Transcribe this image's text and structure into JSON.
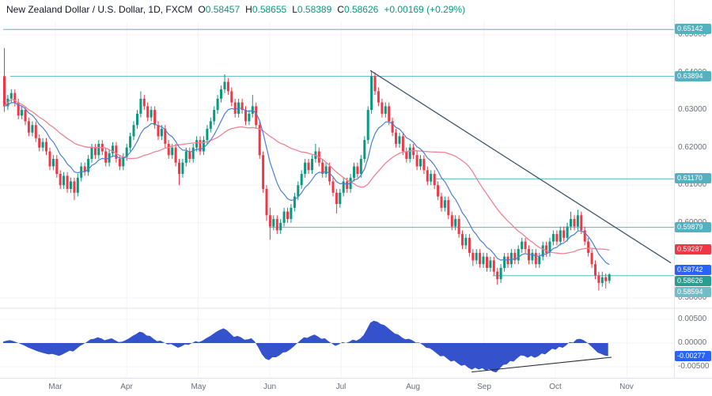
{
  "header": {
    "title": "New Zealand Dollar / U.S. Dollar, 1D, FXCM",
    "o_label": "O",
    "open": "0.58457",
    "h_label": "H",
    "high": "0.58655",
    "l_label": "L",
    "low": "0.58389",
    "c_label": "C",
    "close": "0.58626",
    "change": "+0.00169 (+0.29%)"
  },
  "chart": {
    "y_axis_labels": [
      {
        "text": "0.65000",
        "price": 0.65
      },
      {
        "text": "0.64000",
        "price": 0.64
      },
      {
        "text": "0.63000",
        "price": 0.63
      },
      {
        "text": "0.62000",
        "price": 0.62
      },
      {
        "text": "0.61000",
        "price": 0.61
      },
      {
        "text": "0.60000",
        "price": 0.6
      },
      {
        "text": "0.58000",
        "price": 0.58
      }
    ],
    "price_badges": [
      {
        "text": "0.65142",
        "price": 0.65142,
        "color_key": "badge_teal"
      },
      {
        "text": "0.63894",
        "price": 0.63894,
        "color_key": "badge_teal"
      },
      {
        "text": "0.61170",
        "price": 0.6117,
        "color_key": "badge_teal"
      },
      {
        "text": "0.59879",
        "price": 0.59879,
        "color_key": "badge_teal"
      },
      {
        "text": "0.59287",
        "price": 0.59287,
        "color_key": "badge_red"
      },
      {
        "text": "0.58742",
        "price": 0.58742,
        "color_key": "badge_blue"
      },
      {
        "text": "0.58626",
        "price": 0.58626,
        "color_key": "badge_green"
      },
      {
        "text": "0.58594",
        "price": 0.58594,
        "color_key": "badge_light"
      }
    ],
    "osc_axis_labels": [
      {
        "text": "0.00500",
        "v": 0.005
      },
      {
        "text": "0.00000",
        "v": 0.0
      },
      {
        "text": "-0.00500",
        "v": -0.005
      }
    ],
    "osc_badge": {
      "text": "-0.00277",
      "v": -0.00277
    }
  },
  "chart_data": {
    "type": "candlestick",
    "title": "New Zealand Dollar / U.S. Dollar, 1D, FXCM",
    "symbol": "NZD/USD",
    "interval": "1D",
    "exchange": "FXCM",
    "ohlc_last": {
      "open": 0.58457,
      "high": 0.58655,
      "low": 0.58389,
      "close": 0.58626,
      "change": 0.00169,
      "change_pct": 0.29
    },
    "ylim": [
      0.58,
      0.655
    ],
    "x_months": [
      "Mar",
      "Apr",
      "May",
      "Jun",
      "Jul",
      "Aug",
      "Sep",
      "Oct",
      "Nov"
    ],
    "candles": [
      [
        0.639,
        0.6465,
        0.6295,
        0.631
      ],
      [
        0.631,
        0.634,
        0.63,
        0.633
      ],
      [
        0.633,
        0.6355,
        0.632,
        0.6345
      ],
      [
        0.6345,
        0.6355,
        0.631,
        0.632
      ],
      [
        0.632,
        0.633,
        0.6275,
        0.6285
      ],
      [
        0.6285,
        0.631,
        0.6275,
        0.63
      ],
      [
        0.63,
        0.631,
        0.626,
        0.627
      ],
      [
        0.627,
        0.628,
        0.623,
        0.624
      ],
      [
        0.624,
        0.627,
        0.623,
        0.626
      ],
      [
        0.626,
        0.627,
        0.6215,
        0.6225
      ],
      [
        0.6225,
        0.6235,
        0.619,
        0.62
      ],
      [
        0.62,
        0.6225,
        0.619,
        0.6215
      ],
      [
        0.6215,
        0.6225,
        0.618,
        0.619
      ],
      [
        0.619,
        0.62,
        0.614,
        0.615
      ],
      [
        0.615,
        0.618,
        0.614,
        0.617
      ],
      [
        0.617,
        0.618,
        0.612,
        0.613
      ],
      [
        0.613,
        0.614,
        0.609,
        0.61
      ],
      [
        0.61,
        0.6135,
        0.609,
        0.6125
      ],
      [
        0.6125,
        0.6135,
        0.608,
        0.609
      ],
      [
        0.609,
        0.612,
        0.608,
        0.611
      ],
      [
        0.611,
        0.612,
        0.606,
        0.608
      ],
      [
        0.608,
        0.613,
        0.607,
        0.612
      ],
      [
        0.612,
        0.616,
        0.611,
        0.615
      ],
      [
        0.615,
        0.616,
        0.6125,
        0.6135
      ],
      [
        0.6135,
        0.618,
        0.6125,
        0.617
      ],
      [
        0.617,
        0.621,
        0.616,
        0.62
      ],
      [
        0.62,
        0.621,
        0.617,
        0.618
      ],
      [
        0.618,
        0.622,
        0.617,
        0.621
      ],
      [
        0.621,
        0.622,
        0.618,
        0.619
      ],
      [
        0.619,
        0.62,
        0.615,
        0.616
      ],
      [
        0.616,
        0.6195,
        0.615,
        0.6185
      ],
      [
        0.6185,
        0.6215,
        0.6175,
        0.6205
      ],
      [
        0.6205,
        0.6215,
        0.616,
        0.617
      ],
      [
        0.617,
        0.618,
        0.614,
        0.615
      ],
      [
        0.615,
        0.6185,
        0.614,
        0.6175
      ],
      [
        0.6175,
        0.621,
        0.6165,
        0.62
      ],
      [
        0.62,
        0.624,
        0.619,
        0.623
      ],
      [
        0.623,
        0.627,
        0.622,
        0.626
      ],
      [
        0.626,
        0.63,
        0.625,
        0.629
      ],
      [
        0.629,
        0.635,
        0.628,
        0.633
      ],
      [
        0.633,
        0.634,
        0.63,
        0.631
      ],
      [
        0.631,
        0.632,
        0.627,
        0.628
      ],
      [
        0.628,
        0.631,
        0.627,
        0.63
      ],
      [
        0.63,
        0.631,
        0.625,
        0.626
      ],
      [
        0.626,
        0.627,
        0.622,
        0.623
      ],
      [
        0.623,
        0.626,
        0.622,
        0.625
      ],
      [
        0.625,
        0.626,
        0.62,
        0.621
      ],
      [
        0.621,
        0.622,
        0.617,
        0.618
      ],
      [
        0.618,
        0.621,
        0.617,
        0.62
      ],
      [
        0.62,
        0.621,
        0.615,
        0.616
      ],
      [
        0.616,
        0.617,
        0.61,
        0.613
      ],
      [
        0.613,
        0.617,
        0.612,
        0.616
      ],
      [
        0.616,
        0.62,
        0.615,
        0.619
      ],
      [
        0.619,
        0.62,
        0.616,
        0.617
      ],
      [
        0.617,
        0.621,
        0.616,
        0.62
      ],
      [
        0.62,
        0.623,
        0.619,
        0.622
      ],
      [
        0.622,
        0.623,
        0.618,
        0.619
      ],
      [
        0.619,
        0.623,
        0.618,
        0.622
      ],
      [
        0.622,
        0.626,
        0.621,
        0.625
      ],
      [
        0.625,
        0.628,
        0.624,
        0.627
      ],
      [
        0.627,
        0.631,
        0.626,
        0.63
      ],
      [
        0.63,
        0.634,
        0.629,
        0.633
      ],
      [
        0.633,
        0.6365,
        0.632,
        0.6355
      ],
      [
        0.6355,
        0.6395,
        0.6345,
        0.6375
      ],
      [
        0.6375,
        0.6385,
        0.634,
        0.635
      ],
      [
        0.635,
        0.636,
        0.631,
        0.632
      ],
      [
        0.632,
        0.633,
        0.628,
        0.629
      ],
      [
        0.629,
        0.633,
        0.628,
        0.632
      ],
      [
        0.632,
        0.633,
        0.629,
        0.63
      ],
      [
        0.63,
        0.631,
        0.626,
        0.627
      ],
      [
        0.627,
        0.63,
        0.626,
        0.629
      ],
      [
        0.629,
        0.634,
        0.628,
        0.631
      ],
      [
        0.631,
        0.632,
        0.625,
        0.626
      ],
      [
        0.626,
        0.627,
        0.617,
        0.618
      ],
      [
        0.618,
        0.619,
        0.608,
        0.609
      ],
      [
        0.609,
        0.61,
        0.6005,
        0.602
      ],
      [
        0.602,
        0.604,
        0.5955,
        0.599
      ],
      [
        0.599,
        0.602,
        0.598,
        0.601
      ],
      [
        0.601,
        0.602,
        0.597,
        0.598
      ],
      [
        0.598,
        0.601,
        0.597,
        0.6
      ],
      [
        0.6,
        0.604,
        0.599,
        0.603
      ],
      [
        0.603,
        0.604,
        0.6,
        0.601
      ],
      [
        0.601,
        0.605,
        0.6,
        0.604
      ],
      [
        0.604,
        0.608,
        0.603,
        0.607
      ],
      [
        0.607,
        0.611,
        0.606,
        0.61
      ],
      [
        0.61,
        0.614,
        0.609,
        0.613
      ],
      [
        0.613,
        0.617,
        0.612,
        0.616
      ],
      [
        0.616,
        0.617,
        0.613,
        0.614
      ],
      [
        0.614,
        0.618,
        0.613,
        0.617
      ],
      [
        0.617,
        0.621,
        0.616,
        0.619
      ],
      [
        0.619,
        0.62,
        0.615,
        0.616
      ],
      [
        0.616,
        0.617,
        0.612,
        0.613
      ],
      [
        0.613,
        0.616,
        0.612,
        0.615
      ],
      [
        0.615,
        0.616,
        0.61,
        0.611
      ],
      [
        0.611,
        0.612,
        0.607,
        0.608
      ],
      [
        0.608,
        0.609,
        0.6025,
        0.605
      ],
      [
        0.605,
        0.609,
        0.604,
        0.608
      ],
      [
        0.608,
        0.612,
        0.607,
        0.611
      ],
      [
        0.611,
        0.612,
        0.608,
        0.609
      ],
      [
        0.609,
        0.613,
        0.608,
        0.612
      ],
      [
        0.612,
        0.616,
        0.611,
        0.615
      ],
      [
        0.615,
        0.616,
        0.612,
        0.613
      ],
      [
        0.613,
        0.618,
        0.612,
        0.617
      ],
      [
        0.617,
        0.623,
        0.616,
        0.622
      ],
      [
        0.622,
        0.631,
        0.621,
        0.63
      ],
      [
        0.63,
        0.6405,
        0.629,
        0.639
      ],
      [
        0.639,
        0.64,
        0.634,
        0.635
      ],
      [
        0.635,
        0.636,
        0.631,
        0.632
      ],
      [
        0.632,
        0.633,
        0.628,
        0.629
      ],
      [
        0.629,
        0.632,
        0.628,
        0.631
      ],
      [
        0.631,
        0.632,
        0.626,
        0.627
      ],
      [
        0.627,
        0.628,
        0.623,
        0.624
      ],
      [
        0.624,
        0.625,
        0.62,
        0.621
      ],
      [
        0.621,
        0.624,
        0.62,
        0.623
      ],
      [
        0.623,
        0.624,
        0.618,
        0.619
      ],
      [
        0.619,
        0.62,
        0.616,
        0.617
      ],
      [
        0.617,
        0.621,
        0.616,
        0.62
      ],
      [
        0.62,
        0.621,
        0.617,
        0.618
      ],
      [
        0.618,
        0.619,
        0.614,
        0.615
      ],
      [
        0.615,
        0.618,
        0.614,
        0.617
      ],
      [
        0.617,
        0.618,
        0.613,
        0.614
      ],
      [
        0.614,
        0.615,
        0.61,
        0.611
      ],
      [
        0.611,
        0.614,
        0.61,
        0.613
      ],
      [
        0.613,
        0.614,
        0.609,
        0.61
      ],
      [
        0.61,
        0.611,
        0.606,
        0.607
      ],
      [
        0.607,
        0.608,
        0.603,
        0.604
      ],
      [
        0.604,
        0.607,
        0.603,
        0.606
      ],
      [
        0.606,
        0.607,
        0.601,
        0.602
      ],
      [
        0.602,
        0.603,
        0.598,
        0.599
      ],
      [
        0.599,
        0.602,
        0.598,
        0.601
      ],
      [
        0.601,
        0.602,
        0.596,
        0.597
      ],
      [
        0.597,
        0.598,
        0.593,
        0.594
      ],
      [
        0.594,
        0.597,
        0.593,
        0.596
      ],
      [
        0.596,
        0.597,
        0.591,
        0.592
      ],
      [
        0.592,
        0.593,
        0.5885,
        0.59
      ],
      [
        0.59,
        0.593,
        0.589,
        0.592
      ],
      [
        0.592,
        0.593,
        0.588,
        0.589
      ],
      [
        0.589,
        0.592,
        0.588,
        0.591
      ],
      [
        0.591,
        0.592,
        0.587,
        0.588
      ],
      [
        0.588,
        0.591,
        0.587,
        0.59
      ],
      [
        0.59,
        0.591,
        0.586,
        0.587
      ],
      [
        0.587,
        0.588,
        0.5835,
        0.585
      ],
      [
        0.585,
        0.589,
        0.584,
        0.588
      ],
      [
        0.588,
        0.592,
        0.587,
        0.591
      ],
      [
        0.591,
        0.592,
        0.588,
        0.589
      ],
      [
        0.589,
        0.593,
        0.588,
        0.592
      ],
      [
        0.592,
        0.593,
        0.589,
        0.59
      ],
      [
        0.59,
        0.594,
        0.589,
        0.593
      ],
      [
        0.593,
        0.596,
        0.592,
        0.595
      ],
      [
        0.595,
        0.596,
        0.592,
        0.593
      ],
      [
        0.593,
        0.594,
        0.589,
        0.59
      ],
      [
        0.59,
        0.593,
        0.589,
        0.592
      ],
      [
        0.592,
        0.593,
        0.588,
        0.589
      ],
      [
        0.589,
        0.592,
        0.588,
        0.591
      ],
      [
        0.591,
        0.595,
        0.59,
        0.594
      ],
      [
        0.594,
        0.595,
        0.591,
        0.592
      ],
      [
        0.592,
        0.596,
        0.591,
        0.595
      ],
      [
        0.595,
        0.598,
        0.594,
        0.597
      ],
      [
        0.597,
        0.598,
        0.594,
        0.595
      ],
      [
        0.595,
        0.599,
        0.594,
        0.598
      ],
      [
        0.598,
        0.599,
        0.595,
        0.596
      ],
      [
        0.596,
        0.6,
        0.595,
        0.599
      ],
      [
        0.599,
        0.603,
        0.598,
        0.601
      ],
      [
        0.601,
        0.602,
        0.598,
        0.599
      ],
      [
        0.599,
        0.6035,
        0.598,
        0.602
      ],
      [
        0.602,
        0.603,
        0.597,
        0.598
      ],
      [
        0.598,
        0.599,
        0.594,
        0.595
      ],
      [
        0.595,
        0.596,
        0.591,
        0.592
      ],
      [
        0.592,
        0.593,
        0.588,
        0.589
      ],
      [
        0.589,
        0.59,
        0.585,
        0.586
      ],
      [
        0.586,
        0.587,
        0.582,
        0.584
      ],
      [
        0.584,
        0.587,
        0.583,
        0.5855
      ],
      [
        0.5855,
        0.5865,
        0.5825,
        0.5845
      ],
      [
        0.58457,
        0.58655,
        0.58389,
        0.58626
      ]
    ],
    "price_lines": [
      {
        "price": 0.65142,
        "from": 0
      },
      {
        "price": 0.63894,
        "from": 2
      },
      {
        "price": 0.6117,
        "from": 123
      },
      {
        "price": 0.59879,
        "from": 76
      },
      {
        "price": 0.58594,
        "from": 140
      }
    ],
    "trendlines": [
      {
        "panel": "price",
        "i1": 105,
        "p1": 0.6405,
        "i2": 191,
        "p2": 0.5893
      },
      {
        "panel": "osc",
        "i1": 134,
        "v1": -0.0061,
        "i2": 174,
        "v2": -0.003
      }
    ],
    "oscillator": {
      "scale": 0.001,
      "zero_line": 0,
      "ylim": [
        -0.0065,
        0.005
      ],
      "last": -0.00277,
      "values": [
        0.3,
        0.5,
        0.6,
        0.4,
        0.1,
        -0.2,
        -0.5,
        -0.9,
        -1.2,
        -1.5,
        -1.8,
        -2.0,
        -2.2,
        -2.4,
        -2.3,
        -2.5,
        -2.7,
        -2.4,
        -2.0,
        -1.6,
        -1.8,
        -1.2,
        -0.6,
        -0.2,
        0.3,
        0.8,
        0.9,
        1.2,
        1.0,
        0.6,
        0.8,
        1.0,
        0.6,
        0.2,
        0.3,
        0.6,
        1.0,
        1.5,
        1.9,
        2.4,
        2.2,
        1.6,
        1.5,
        0.9,
        0.4,
        0.5,
        0.1,
        -0.3,
        -0.2,
        -0.6,
        -1.0,
        -0.7,
        -0.3,
        -0.4,
        0.0,
        0.4,
        0.2,
        0.5,
        1.0,
        1.4,
        1.9,
        2.4,
        2.8,
        3.1,
        2.7,
        2.0,
        1.3,
        1.5,
        1.2,
        0.7,
        0.8,
        1.0,
        0.3,
        -1.0,
        -2.4,
        -3.3,
        -3.6,
        -3.0,
        -3.0,
        -2.6,
        -2.0,
        -1.9,
        -1.4,
        -0.8,
        -0.1,
        0.6,
        1.2,
        1.1,
        1.5,
        1.8,
        1.4,
        0.9,
        1.0,
        0.4,
        -0.1,
        -0.6,
        -0.3,
        0.2,
        0.0,
        0.3,
        0.7,
        0.5,
        0.9,
        1.6,
        2.9,
        4.3,
        4.7,
        4.5,
        4.0,
        3.8,
        3.2,
        2.6,
        2.0,
        1.8,
        1.2,
        0.8,
        0.9,
        0.6,
        0.1,
        0.1,
        -0.4,
        -1.0,
        -1.1,
        -1.6,
        -2.2,
        -2.8,
        -2.7,
        -3.3,
        -3.9,
        -3.7,
        -4.3,
        -4.8,
        -4.6,
        -5.2,
        -5.6,
        -5.2,
        -5.6,
        -5.3,
        -5.8,
        -5.5,
        -6.0,
        -6.2,
        -5.4,
        -4.6,
        -4.5,
        -3.8,
        -3.9,
        -3.2,
        -2.6,
        -2.7,
        -3.1,
        -2.7,
        -3.1,
        -2.8,
        -2.2,
        -2.4,
        -1.8,
        -1.2,
        -1.4,
        -0.8,
        -1.0,
        -0.5,
        0.2,
        0.1,
        0.8,
        0.9,
        0.6,
        0.1,
        -0.6,
        -1.3,
        -2.0,
        -2.3,
        -2.6,
        -2.77
      ]
    }
  },
  "colors": {
    "up": "#089981",
    "down": "#f23645",
    "ma_fast": "#4c7fd0",
    "ma_slow": "#ef8294",
    "level": "#56b6c4",
    "trend": "#3d5466",
    "osc_trend": "#22262f",
    "osc_fill": "#3452cc",
    "badge_teal": "#55b0bf",
    "badge_green": "#2a9d90",
    "badge_light": "#72bcc7",
    "badge_red": "#f23645",
    "badge_blue": "#2962ff",
    "grid": "#f0f3fa",
    "separator": "#e0e3eb",
    "axis_text": "#686d78"
  }
}
